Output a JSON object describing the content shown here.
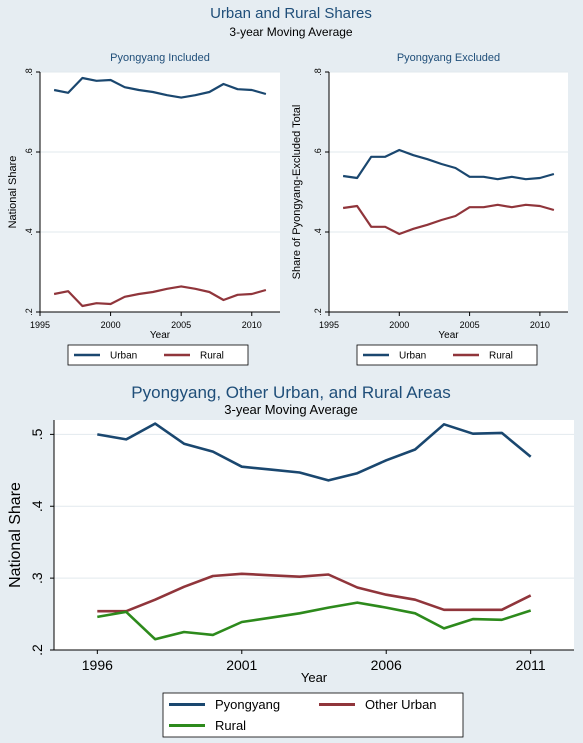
{
  "header": {
    "title": "Urban and Rural Shares",
    "subtitle": "3-year Moving Average"
  },
  "bottom_header": {
    "title": "Pyongyang, Other Urban, and Rural Areas",
    "subtitle": "3-year Moving Average"
  },
  "colors": {
    "urban": "#1a476f",
    "rural": "#90353b",
    "green": "#2d8a1c"
  },
  "chart_data": [
    {
      "type": "line",
      "title": "Pyongyang Included",
      "xlabel": "Year",
      "ylabel": "National Share",
      "xlim": [
        1995,
        2012
      ],
      "ylim": [
        0.2,
        0.8
      ],
      "xticks": [
        1995,
        2000,
        2005,
        2010
      ],
      "xtick_labels": [
        "1995",
        "2000",
        "2005",
        "2010"
      ],
      "yticks": [
        0.2,
        0.4,
        0.6,
        0.8
      ],
      "ytick_labels": [
        ".2",
        ".4",
        ".6",
        ".8"
      ],
      "grid": true,
      "legend_position": "bottom",
      "x": [
        1996,
        1997,
        1998,
        1999,
        2000,
        2001,
        2002,
        2003,
        2004,
        2005,
        2006,
        2007,
        2008,
        2009,
        2010,
        2011
      ],
      "series": [
        {
          "name": "Urban",
          "color": "#1a476f",
          "values": [
            0.755,
            0.748,
            0.785,
            0.778,
            0.78,
            0.762,
            0.755,
            0.75,
            0.742,
            0.736,
            0.742,
            0.75,
            0.77,
            0.757,
            0.755,
            0.745
          ]
        },
        {
          "name": "Rural",
          "color": "#90353b",
          "values": [
            0.245,
            0.252,
            0.215,
            0.222,
            0.22,
            0.238,
            0.245,
            0.25,
            0.258,
            0.264,
            0.258,
            0.25,
            0.23,
            0.243,
            0.245,
            0.255
          ]
        }
      ]
    },
    {
      "type": "line",
      "title": "Pyongyang Excluded",
      "xlabel": "Year",
      "ylabel": "Share of Pyongyang-Excluded Total",
      "xlim": [
        1995,
        2012
      ],
      "ylim": [
        0.2,
        0.8
      ],
      "xticks": [
        1995,
        2000,
        2005,
        2010
      ],
      "xtick_labels": [
        "1995",
        "2000",
        "2005",
        "2010"
      ],
      "yticks": [
        0.2,
        0.4,
        0.6,
        0.8
      ],
      "ytick_labels": [
        ".2",
        ".4",
        ".6",
        ".8"
      ],
      "grid": true,
      "legend_position": "bottom",
      "x": [
        1996,
        1997,
        1998,
        1999,
        2000,
        2001,
        2002,
        2003,
        2004,
        2005,
        2006,
        2007,
        2008,
        2009,
        2010,
        2011
      ],
      "series": [
        {
          "name": "Urban",
          "color": "#1a476f",
          "values": [
            0.54,
            0.535,
            0.588,
            0.588,
            0.605,
            0.592,
            0.582,
            0.57,
            0.56,
            0.538,
            0.538,
            0.532,
            0.538,
            0.532,
            0.535,
            0.545
          ]
        },
        {
          "name": "Rural",
          "color": "#90353b",
          "values": [
            0.46,
            0.465,
            0.413,
            0.413,
            0.395,
            0.408,
            0.418,
            0.43,
            0.44,
            0.462,
            0.462,
            0.468,
            0.462,
            0.468,
            0.465,
            0.455
          ]
        }
      ]
    },
    {
      "type": "line",
      "title": "",
      "xlabel": "Year",
      "ylabel": "National Share",
      "xlim": [
        1994.5,
        2012.5
      ],
      "ylim": [
        0.2,
        0.52
      ],
      "xticks": [
        1996,
        2001,
        2006,
        2011
      ],
      "xtick_labels": [
        "1996",
        "2001",
        "2006",
        "2011"
      ],
      "yticks": [
        0.2,
        0.3,
        0.4,
        0.5
      ],
      "ytick_labels": [
        ".2",
        ".3",
        ".4",
        ".5"
      ],
      "grid": true,
      "legend_position": "bottom",
      "x": [
        1996,
        1997,
        1998,
        1999,
        2000,
        2001,
        2002,
        2003,
        2004,
        2005,
        2006,
        2007,
        2008,
        2009,
        2010,
        2011
      ],
      "series": [
        {
          "name": "Pyongyang",
          "color": "#1a476f",
          "values": [
            0.5,
            0.493,
            0.515,
            0.487,
            0.476,
            0.455,
            0.451,
            0.447,
            0.436,
            0.446,
            0.464,
            0.479,
            0.514,
            0.501,
            0.502,
            0.469
          ]
        },
        {
          "name": "Other Urban",
          "color": "#90353b",
          "values": [
            0.254,
            0.254,
            0.27,
            0.288,
            0.303,
            0.306,
            0.304,
            0.302,
            0.305,
            0.287,
            0.277,
            0.27,
            0.256,
            0.256,
            0.256,
            0.276
          ]
        },
        {
          "name": "Rural",
          "color": "#2d8a1c",
          "values": [
            0.246,
            0.253,
            0.215,
            0.225,
            0.221,
            0.239,
            0.245,
            0.251,
            0.259,
            0.266,
            0.259,
            0.251,
            0.23,
            0.243,
            0.242,
            0.255
          ]
        }
      ]
    }
  ]
}
